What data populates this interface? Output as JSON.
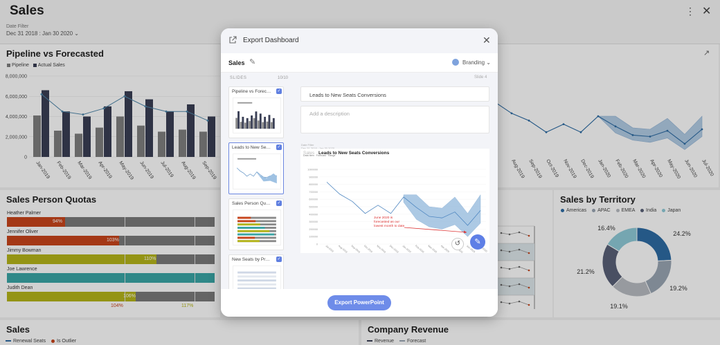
{
  "app": {
    "title": "Sales",
    "date_filter_label": "Date Filter",
    "date_filter_value": "Dec 31 2018 : Jan 30 2020"
  },
  "pipeline_card": {
    "title": "Pipeline vs Forecasted",
    "legend": [
      "Pipeline",
      "Actual Sales"
    ],
    "colors": {
      "pipeline": "#7f7f7f",
      "actual": "#3a3f55",
      "line": "#4f87aa"
    }
  },
  "chart_data": [
    {
      "type": "bar",
      "title": "Pipeline vs Forecasted",
      "categories": [
        "Jan-2019",
        "Feb-2019",
        "Mar-2019",
        "Apr-2019",
        "May-2019",
        "Jun-2019",
        "Jul-2019",
        "Aug-2019",
        "Sep-2019"
      ],
      "series": [
        {
          "name": "Pipeline",
          "values": [
            4100000,
            2600000,
            2300000,
            2900000,
            4000000,
            3100000,
            2500000,
            2700000,
            2500000
          ]
        },
        {
          "name": "Actual Sales",
          "values": [
            6600000,
            4500000,
            4000000,
            5000000,
            6500000,
            5700000,
            4500000,
            5200000,
            4000000
          ]
        }
      ],
      "line_values": [
        6200000,
        4500000,
        4200000,
        4800000,
        6000000,
        5000000,
        4500000,
        4500000,
        3600000
      ],
      "yticks": [
        "0",
        "2,000,000",
        "4,000,000",
        "6,000,000",
        "8,000,000"
      ],
      "ylim": [
        0,
        8000000
      ]
    },
    {
      "type": "line",
      "title": "Leads to New Seats Conversions",
      "x": [
        "Jul-2019",
        "Aug-2019",
        "Sep-2019",
        "Oct-2019",
        "Nov-2019",
        "Dec-2019",
        "Jan-2020",
        "Feb-2020",
        "Mar-2020",
        "Apr-2020",
        "May-2020",
        "Jun-2020",
        "Jul-2020"
      ],
      "values": [
        0.78,
        0.62,
        0.52,
        0.36,
        0.47,
        0.36,
        0.58,
        0.44,
        0.32,
        0.3,
        0.38,
        0.2,
        0.4
      ],
      "band_low": [
        null,
        null,
        null,
        null,
        null,
        null,
        0.58,
        0.35,
        0.25,
        0.22,
        0.28,
        0.12,
        0.3
      ],
      "band_high": [
        null,
        null,
        null,
        null,
        null,
        null,
        0.58,
        0.58,
        0.42,
        0.4,
        0.55,
        0.33,
        0.58
      ]
    },
    {
      "type": "pie",
      "title": "Sales by Territory",
      "categories": [
        "Americas",
        "APAC",
        "EMEA",
        "India",
        "Japan"
      ],
      "values": [
        24.2,
        19.2,
        19.1,
        21.2,
        16.4
      ],
      "labels": [
        "24.2%",
        "19.2%",
        "19.1%",
        "21.2%",
        "16.4%"
      ]
    }
  ],
  "quotas_card": {
    "title": "Sales Person Quotas",
    "people": [
      {
        "name": "Heather Palmer",
        "pct": "94%",
        "value": 0.28,
        "color": "#c8451c"
      },
      {
        "name": "Jennifer Oliver",
        "pct": "103%",
        "value": 0.54,
        "color": "#c8451c"
      },
      {
        "name": "Jimmy Bowman",
        "pct": "110%",
        "value": 0.72,
        "color": "#b5b51a"
      },
      {
        "name": "Joe Lawrence",
        "pct": "",
        "value": 1.0,
        "color": "#3aa6a6"
      },
      {
        "name": "Judith Dean",
        "pct": "106%",
        "value": 0.62,
        "color": "#b5b51a"
      }
    ],
    "markers": [
      "104%",
      "117%"
    ]
  },
  "territory_card": {
    "title": "Sales by Territory",
    "legend": [
      "Americas",
      "APAC",
      "EMEA",
      "India",
      "Japan"
    ],
    "colors": [
      "#2e6ca4",
      "#9aa6b4",
      "#b9bcc2",
      "#5a6178",
      "#8fcbd8"
    ]
  },
  "bottom_left": {
    "title": "Sales",
    "legend": [
      "Renewal Seats",
      "Is Outlier"
    ]
  },
  "bottom_right": {
    "title": "Company Revenue",
    "legend": [
      "Revenue",
      "Forecast"
    ]
  },
  "modal": {
    "title": "Export Dashboard",
    "dashboard_name": "Sales",
    "branding": "Branding",
    "slides_header": "SLIDES",
    "slides_count": "10/10",
    "slide_number": "Slide 4",
    "thumbnails": [
      "Pipeline vs Foreca…",
      "Leads to New Seat…",
      "Sales Person Quot…",
      "New Seats by Prod…"
    ],
    "slide_title_value": "Leads to New Seats Conversions",
    "description_placeholder": "Add a description",
    "preview_title": "Leads to New Seats Conversions",
    "preview_tag": "Sales",
    "preview_small1": "Date Filter",
    "preview_small2": "Dec 31 2018 : Jan 30 2020",
    "annotation": "June 2020 is forecasted as our lowest month to date",
    "export_button": "Export PowerPoint"
  }
}
